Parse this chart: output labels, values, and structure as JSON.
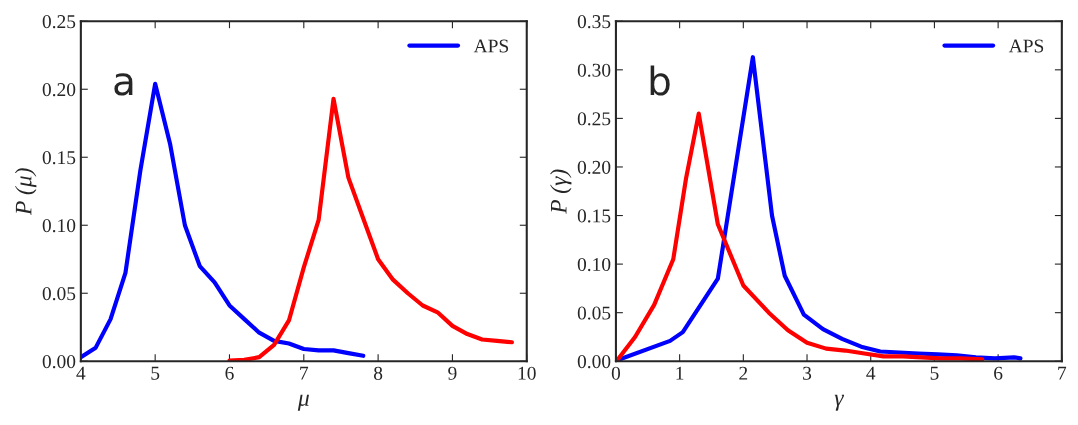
{
  "chart_data": [
    {
      "type": "line",
      "xlabel": "μ",
      "ylabel": "P (μ)",
      "annotations": [
        "a"
      ],
      "xlim": [
        4,
        10
      ],
      "xticks": [
        4,
        5,
        6,
        7,
        8,
        9,
        10
      ],
      "ylim": [
        0,
        0.25
      ],
      "yticks": [
        {
          "value": 0,
          "label": "0.00"
        },
        0.05,
        {
          "value": 0.1,
          "label": "0.10"
        },
        0.15,
        {
          "value": 0.2,
          "label": "0.20"
        },
        0.25
      ],
      "legend": "top right",
      "grid": false,
      "series": [
        {
          "name": "APS",
          "color": "#0000ff",
          "x": [
            4.0,
            4.2,
            4.4,
            4.6,
            4.8,
            5.0,
            5.2,
            5.4,
            5.6,
            5.8,
            6.0,
            6.2,
            6.4,
            6.6,
            6.8,
            7.0,
            7.2,
            7.4,
            7.6,
            7.8
          ],
          "values": [
            0.003,
            0.01,
            0.031,
            0.065,
            0.14,
            0.204,
            0.16,
            0.1,
            0.07,
            0.058,
            0.041,
            0.031,
            0.021,
            0.015,
            0.013,
            0.009,
            0.008,
            0.008,
            0.006,
            0.004
          ]
        },
        {
          "color": "#ff0000",
          "x": [
            6.0,
            6.2,
            6.4,
            6.6,
            6.8,
            7.0,
            7.2,
            7.4,
            7.6,
            7.8,
            8.0,
            8.2,
            8.4,
            8.6,
            8.8,
            9.0,
            9.2,
            9.4,
            9.6,
            9.8
          ],
          "values": [
            0.0005,
            0.001,
            0.003,
            0.012,
            0.03,
            0.069,
            0.104,
            0.193,
            0.135,
            0.105,
            0.075,
            0.06,
            0.05,
            0.041,
            0.036,
            0.026,
            0.02,
            0.016,
            0.015,
            0.014
          ]
        }
      ]
    },
    {
      "type": "line",
      "xlabel": "γ",
      "ylabel": "P (γ)",
      "annotations": [
        "b"
      ],
      "xlim": [
        0,
        7
      ],
      "xticks": [
        0,
        1,
        2,
        3,
        4,
        5,
        6,
        7
      ],
      "ylim": [
        0,
        0.35
      ],
      "yticks": [
        {
          "value": 0,
          "label": "0.00"
        },
        0.05,
        {
          "value": 0.1,
          "label": "0.10"
        },
        0.15,
        {
          "value": 0.2,
          "label": "0.20"
        },
        0.25,
        {
          "value": 0.3,
          "label": "0.30"
        },
        0.35
      ],
      "legend": "top right",
      "grid": false,
      "series": [
        {
          "name": "APS",
          "color": "#0000ff",
          "x": [
            0.02,
            0.85,
            1.05,
            1.6,
            2.15,
            2.45,
            2.65,
            2.95,
            3.25,
            3.55,
            3.85,
            4.15,
            4.45,
            4.75,
            5.05,
            5.35,
            5.65,
            5.95,
            6.25,
            6.35
          ],
          "values": [
            0.001,
            0.021,
            0.03,
            0.085,
            0.313,
            0.15,
            0.088,
            0.048,
            0.033,
            0.023,
            0.015,
            0.01,
            0.009,
            0.008,
            0.007,
            0.006,
            0.004,
            0.003,
            0.004,
            0.003
          ]
        },
        {
          "color": "#ff0000",
          "x": [
            0.02,
            0.3,
            0.6,
            0.9,
            1.1,
            1.3,
            1.6,
            2.0,
            2.4,
            2.7,
            3.0,
            3.3,
            3.6,
            3.9,
            4.2,
            4.5,
            4.8,
            5.1,
            5.4,
            5.75
          ],
          "values": [
            0.001,
            0.025,
            0.058,
            0.105,
            0.188,
            0.255,
            0.141,
            0.078,
            0.05,
            0.032,
            0.019,
            0.013,
            0.011,
            0.008,
            0.005,
            0.005,
            0.004,
            0.003,
            0.003,
            0.002
          ]
        }
      ]
    }
  ]
}
